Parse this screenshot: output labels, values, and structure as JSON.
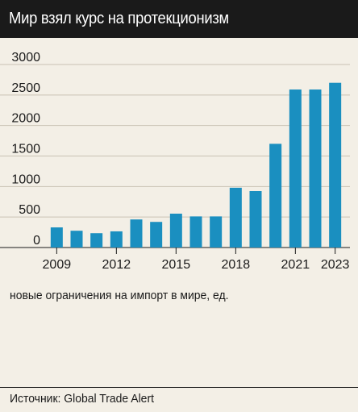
{
  "title": "Мир взял курс на протекционизм",
  "caption": "новые ограничения на импорт в мире, ед.",
  "source": "Источник: Global Trade Alert",
  "colors": {
    "bar": "#1a8fc0",
    "grid": "#c9c2b4",
    "title_bg": "#1a1a1a",
    "background": "#f3efe6"
  },
  "chart_data": {
    "type": "bar",
    "title": "Мир взял курс на протекционизм",
    "xlabel": "",
    "ylabel": "новые ограничения на импорт в мире, ед.",
    "ylim": [
      0,
      3000
    ],
    "yticks": [
      "0",
      "500",
      "1000",
      "1500",
      "2000",
      "2500",
      "3000"
    ],
    "grid": true,
    "categories": [
      "2009",
      "2010",
      "2011",
      "2012",
      "2013",
      "2014",
      "2015",
      "2016",
      "2017",
      "2018",
      "2019",
      "2020",
      "2021",
      "2022",
      "2023"
    ],
    "values": [
      330,
      275,
      235,
      265,
      460,
      420,
      555,
      510,
      510,
      980,
      925,
      1700,
      2590,
      2590,
      2700
    ],
    "xtick_labels": [
      {
        "category": "2009",
        "label": "2009"
      },
      {
        "category": "2012",
        "label": "2012"
      },
      {
        "category": "2015",
        "label": "2015"
      },
      {
        "category": "2018",
        "label": "2018"
      },
      {
        "category": "2021",
        "label": "2021"
      },
      {
        "category": "2023",
        "label": "2023"
      }
    ]
  }
}
